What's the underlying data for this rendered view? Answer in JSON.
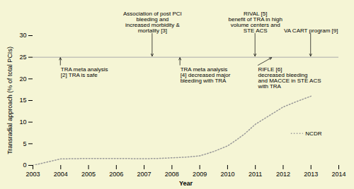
{
  "chart_data": {
    "type": "line",
    "background_color": "#f5f5d5",
    "xlabel": "Year",
    "ylabel": "Transradial approach (% of total PCIs)",
    "xlim": [
      2003,
      2014
    ],
    "ylim": [
      0,
      30
    ],
    "xticks": [
      2003,
      2004,
      2005,
      2006,
      2007,
      2008,
      2009,
      2010,
      2011,
      2012,
      2013,
      2014
    ],
    "yticks": [
      0,
      5,
      10,
      15,
      20,
      25,
      30
    ],
    "grid": false,
    "x": [
      2003,
      2004,
      2004.5,
      2005,
      2005.5,
      2006,
      2006.5,
      2007,
      2007.5,
      2008,
      2008.5,
      2009,
      2009.5,
      2010,
      2010.3,
      2010.6,
      2011,
      2011.5,
      2012,
      2012.5,
      2013
    ],
    "series": [
      {
        "name": "NCDR",
        "color": "#999999",
        "line_style": "dotted",
        "label_x": 2012.85,
        "label_y": 7.3,
        "values": [
          0.0,
          1.5,
          1.55,
          1.6,
          1.58,
          1.6,
          1.57,
          1.55,
          1.6,
          1.75,
          1.9,
          2.2,
          3.2,
          4.5,
          5.8,
          7.2,
          9.5,
          11.5,
          13.5,
          14.8,
          16.0
        ]
      }
    ],
    "reference_line": {
      "y": 25,
      "color": "#aaaaaa"
    },
    "annotations": [
      {
        "text": "Association of post PCI\nbleeding and\nincreased morbidity &\nmortality [3]",
        "x": 2007.3,
        "arrow_x": 2007.3,
        "side": "above"
      },
      {
        "text": "RIVAL [5]\nbenefit of TRA in high\nvolume centers and\nSTE ACS",
        "x": 2011.0,
        "arrow_x": 2011.0,
        "side": "above"
      },
      {
        "text": "VA CART program [9]",
        "x": 2013.0,
        "arrow_x": 2013.0,
        "side": "above"
      },
      {
        "text": "TRA meta analysis\n[2] TRA is safe",
        "x": 2004.0,
        "arrow_x": 2004.0,
        "side": "below"
      },
      {
        "text": "TRA meta analysis\n[4] decreased major\nbleeding with TRA",
        "x": 2008.3,
        "arrow_x": 2008.3,
        "side": "below"
      },
      {
        "text": "RIFLE [6]\ndecreased bleeding\nand MACCE in STE ACS\nwith TRA",
        "x": 2011.1,
        "arrow_x": 2011.6,
        "side": "below"
      }
    ]
  }
}
